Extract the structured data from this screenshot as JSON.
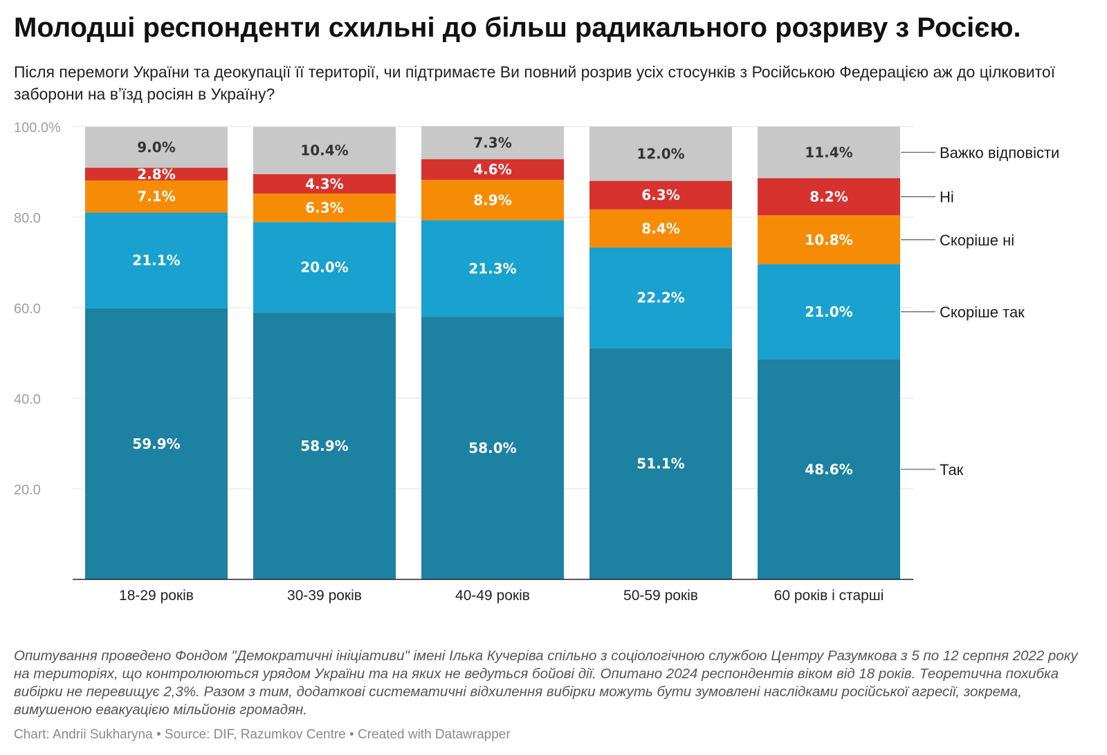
{
  "title": "Молодші респонденти схильні до більш радикального розриву з Росією.",
  "subtitle": "Після перемоги України та деокупації її території, чи підтримаєте Ви повний розрив усіх стосунків з Російською Федерацією аж до цілковитої заборони на вʼїзд росіян в Україну?",
  "notes": "Опитування проведено Фондом \"Демократичні ініціативи\" імені Ілька Кучеріва спільно з соціологічною службою Центру Разумкова з 5 по 12 серпня 2022 року на територіях, що контролюються урядом України та на яких не ведуться бойові дії. Опитано 2024 респондентів віком від 18 років. Теоретична похибка вибірки не перевищує 2,3%. Разом з тим, додаткові систематичні відхилення вибірки можуть бути зумовлені наслідками російської агресії, зокрема, вимушеною евакуацією мільйонів громадян.",
  "byline": {
    "chart": "Chart: Andrii Sukharyna",
    "separator": " • ",
    "source": "Source: DIF, Razumkov Centre",
    "created": "Created with Datawrapper"
  },
  "chart_data": {
    "type": "bar",
    "stacked": true,
    "categories": [
      "18-29 років",
      "30-39 років",
      "40-49 років",
      "50-59 років",
      "60 років і старші"
    ],
    "series": [
      {
        "name": "Так",
        "color": "#1d81a2",
        "values": [
          59.9,
          58.9,
          58.0,
          51.1,
          48.6
        ],
        "labels": [
          "59.9%",
          "58.9%",
          "58.0%",
          "51.1%",
          "48.6%"
        ]
      },
      {
        "name": "Скоріше так",
        "color": "#19a1cf",
        "values": [
          21.1,
          20.0,
          21.3,
          22.2,
          21.0
        ],
        "labels": [
          "21.1%",
          "20.0%",
          "21.3%",
          "22.2%",
          "21.0%"
        ]
      },
      {
        "name": "Скоріше ні",
        "color": "#f68c06",
        "values": [
          7.1,
          6.3,
          8.9,
          8.4,
          10.8
        ],
        "labels": [
          "7.1%",
          "6.3%",
          "8.9%",
          "8.4%",
          "10.8%"
        ]
      },
      {
        "name": "Ні",
        "color": "#d6322e",
        "values": [
          2.8,
          4.3,
          4.6,
          6.3,
          8.2
        ],
        "labels": [
          "2.8%",
          "4.3%",
          "4.6%",
          "6.3%",
          "8.2%"
        ]
      },
      {
        "name": "Важко відповісти",
        "color": "#c8c8c8",
        "values": [
          9.0,
          10.4,
          7.3,
          12.0,
          11.4
        ],
        "labels": [
          "9.0%",
          "10.4%",
          "7.3%",
          "12.0%",
          "11.4%"
        ]
      }
    ],
    "ylim": [
      0,
      100
    ],
    "yticks": [
      20,
      40,
      60,
      80,
      100
    ],
    "ytick_labels": [
      "20.0",
      "40.0",
      "60.0",
      "80.0",
      "100.0%"
    ],
    "legend_position": "right",
    "grid": true
  }
}
